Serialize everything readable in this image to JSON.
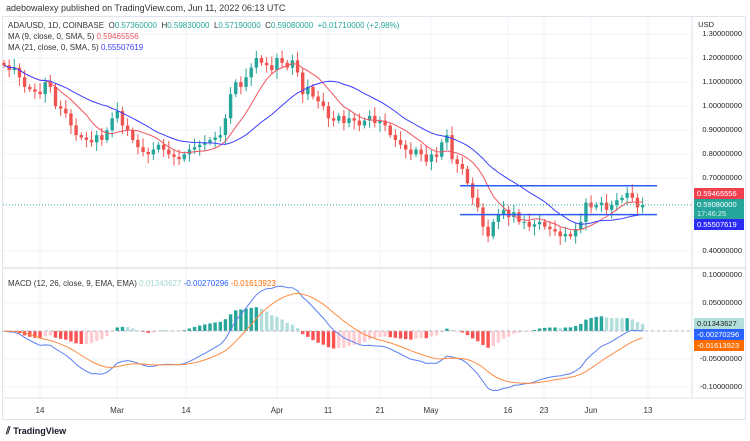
{
  "publisher_line": "adebowalexy published on TradingView.com, Jun 11, 2022 06:13 UTC",
  "legend": {
    "symbol": "ADA/USD, 1D, COINBASE",
    "o_label": "O",
    "o": "0.57360000",
    "h_label": "H",
    "h": "0.59830000",
    "l_label": "L",
    "l": "0.57190000",
    "c_label": "C",
    "c": "0.59080000",
    "change": "+0.01710000 (+2.98%)",
    "ma9_label": "MA (9, close, 0, SMA, 5)",
    "ma9": "0.59465556",
    "ma21_label": "MA (21, close, 0, SMA, 5)",
    "ma21": "0.55507619",
    "macd_label": "MACD (12, 26, close, 9, EMA, EMA)",
    "macd_hist": "0.01343627",
    "macd_line": "-0.00270296",
    "macd_signal": "-0.01613923"
  },
  "price_axis": {
    "currency": "USD",
    "ticks": [
      "1.30000000",
      "1.20000000",
      "1.10000000",
      "1.00000000",
      "0.90000000",
      "0.80000000",
      "0.70000000",
      "0.40000000"
    ],
    "tags": {
      "ma9": "0.59465556",
      "price": "0.59080000",
      "countdown": "17:46:25",
      "ma21": "0.55507619"
    }
  },
  "macd_axis": {
    "ticks": [
      "0.10000000",
      "0.05000000",
      "-0.05000000",
      "-0.10000000"
    ],
    "tags": {
      "hist": "0.01343627",
      "macd": "-0.00270296",
      "signal": "-0.01613923"
    }
  },
  "time_axis": [
    "14",
    "Mar",
    "14",
    "Apr",
    "11",
    "21",
    "May",
    "16",
    "23",
    "Jun",
    "13"
  ],
  "footer": "TradingView",
  "colors": {
    "up": "#26a69a",
    "down": "#ef5350",
    "ma9": "#f0545f",
    "ma21": "#3d3dff",
    "macd": "#2962ff",
    "signal": "#ff6d00",
    "hline": "#2f5cf0"
  },
  "chart_data": {
    "type": "candlestick",
    "start": "2022-02-07",
    "interval": "1D",
    "closes": [
      1.17,
      1.15,
      1.16,
      1.12,
      1.08,
      1.07,
      1.06,
      1.05,
      1.1,
      1.08,
      1.0,
      0.99,
      0.97,
      0.92,
      0.88,
      0.87,
      0.86,
      0.85,
      0.88,
      0.86,
      0.9,
      0.95,
      0.98,
      0.92,
      0.9,
      0.86,
      0.83,
      0.81,
      0.8,
      0.82,
      0.84,
      0.82,
      0.8,
      0.79,
      0.78,
      0.8,
      0.82,
      0.83,
      0.84,
      0.85,
      0.86,
      0.87,
      0.88,
      0.95,
      1.05,
      1.1,
      1.08,
      1.12,
      1.16,
      1.2,
      1.18,
      1.17,
      1.15,
      1.2,
      1.18,
      1.16,
      1.19,
      1.14,
      1.05,
      1.08,
      1.04,
      1.02,
      1.0,
      0.95,
      0.94,
      0.96,
      0.93,
      0.95,
      0.94,
      0.92,
      0.94,
      0.96,
      0.93,
      0.94,
      0.92,
      0.88,
      0.86,
      0.84,
      0.82,
      0.8,
      0.82,
      0.8,
      0.77,
      0.8,
      0.79,
      0.85,
      0.88,
      0.78,
      0.76,
      0.74,
      0.68,
      0.62,
      0.58,
      0.5,
      0.46,
      0.52,
      0.55,
      0.57,
      0.54,
      0.56,
      0.52,
      0.52,
      0.5,
      0.51,
      0.52,
      0.5,
      0.49,
      0.48,
      0.46,
      0.47,
      0.46,
      0.49,
      0.52,
      0.6,
      0.58,
      0.59,
      0.6,
      0.57,
      0.59,
      0.61,
      0.62,
      0.64,
      0.62,
      0.58,
      0.5908
    ],
    "horizontal_lines": [
      0.67,
      0.55
    ],
    "price_range": [
      0.35,
      1.3
    ],
    "macd_range": [
      -0.12,
      0.11
    ]
  }
}
